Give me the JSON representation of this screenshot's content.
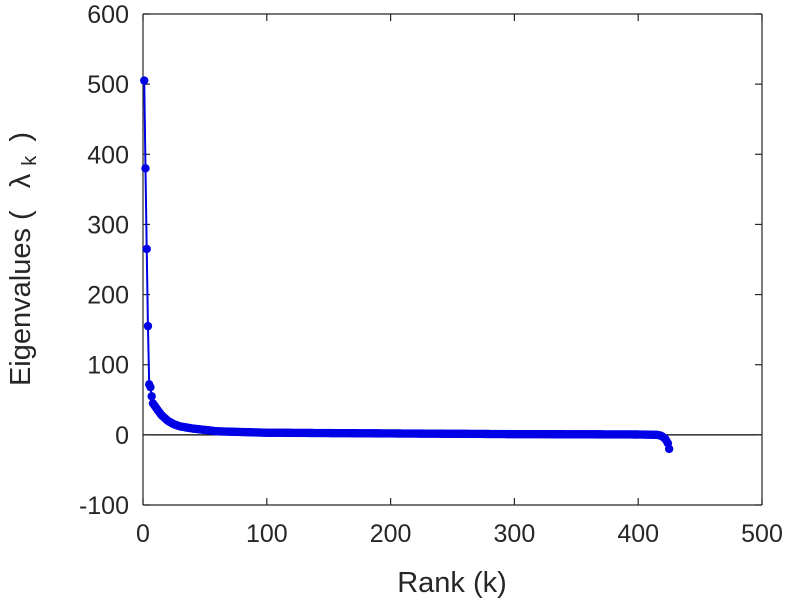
{
  "chart_data": {
    "type": "scatter",
    "xlabel": "Rank (k)",
    "ylabel_text": "Eigenvalues (",
    "ylabel_symbol": "λ",
    "ylabel_subscript": "k",
    "ylabel_close": ")",
    "xlim": [
      0,
      500
    ],
    "ylim": [
      -100,
      600
    ],
    "xticks": [
      0,
      100,
      200,
      300,
      400,
      500
    ],
    "yticks": [
      -100,
      0,
      100,
      200,
      300,
      400,
      500,
      600
    ],
    "xtick_labels": [
      "0",
      "100",
      "200",
      "300",
      "400",
      "500"
    ],
    "ytick_labels": [
      "-100",
      "0",
      "100",
      "200",
      "300",
      "400",
      "500",
      "600"
    ],
    "zero_line": true,
    "grid": false,
    "series_color": "#0000e6",
    "n_points": 425,
    "anchors": [
      [
        1,
        505
      ],
      [
        2,
        380
      ],
      [
        3,
        265
      ],
      [
        4,
        155
      ],
      [
        5,
        72
      ],
      [
        6,
        68
      ],
      [
        7,
        55
      ],
      [
        8,
        45
      ],
      [
        10,
        40
      ],
      [
        12,
        35
      ],
      [
        15,
        28
      ],
      [
        20,
        20
      ],
      [
        25,
        15
      ],
      [
        30,
        12
      ],
      [
        40,
        9
      ],
      [
        50,
        7
      ],
      [
        60,
        5
      ],
      [
        80,
        4
      ],
      [
        100,
        3
      ],
      [
        150,
        2.5
      ],
      [
        200,
        2
      ],
      [
        250,
        1.5
      ],
      [
        300,
        1
      ],
      [
        350,
        0.8
      ],
      [
        400,
        0.5
      ],
      [
        410,
        0.2
      ],
      [
        415,
        0
      ],
      [
        418,
        -1
      ],
      [
        420,
        -3
      ],
      [
        422,
        -6
      ],
      [
        424,
        -12
      ],
      [
        425,
        -20
      ]
    ]
  }
}
